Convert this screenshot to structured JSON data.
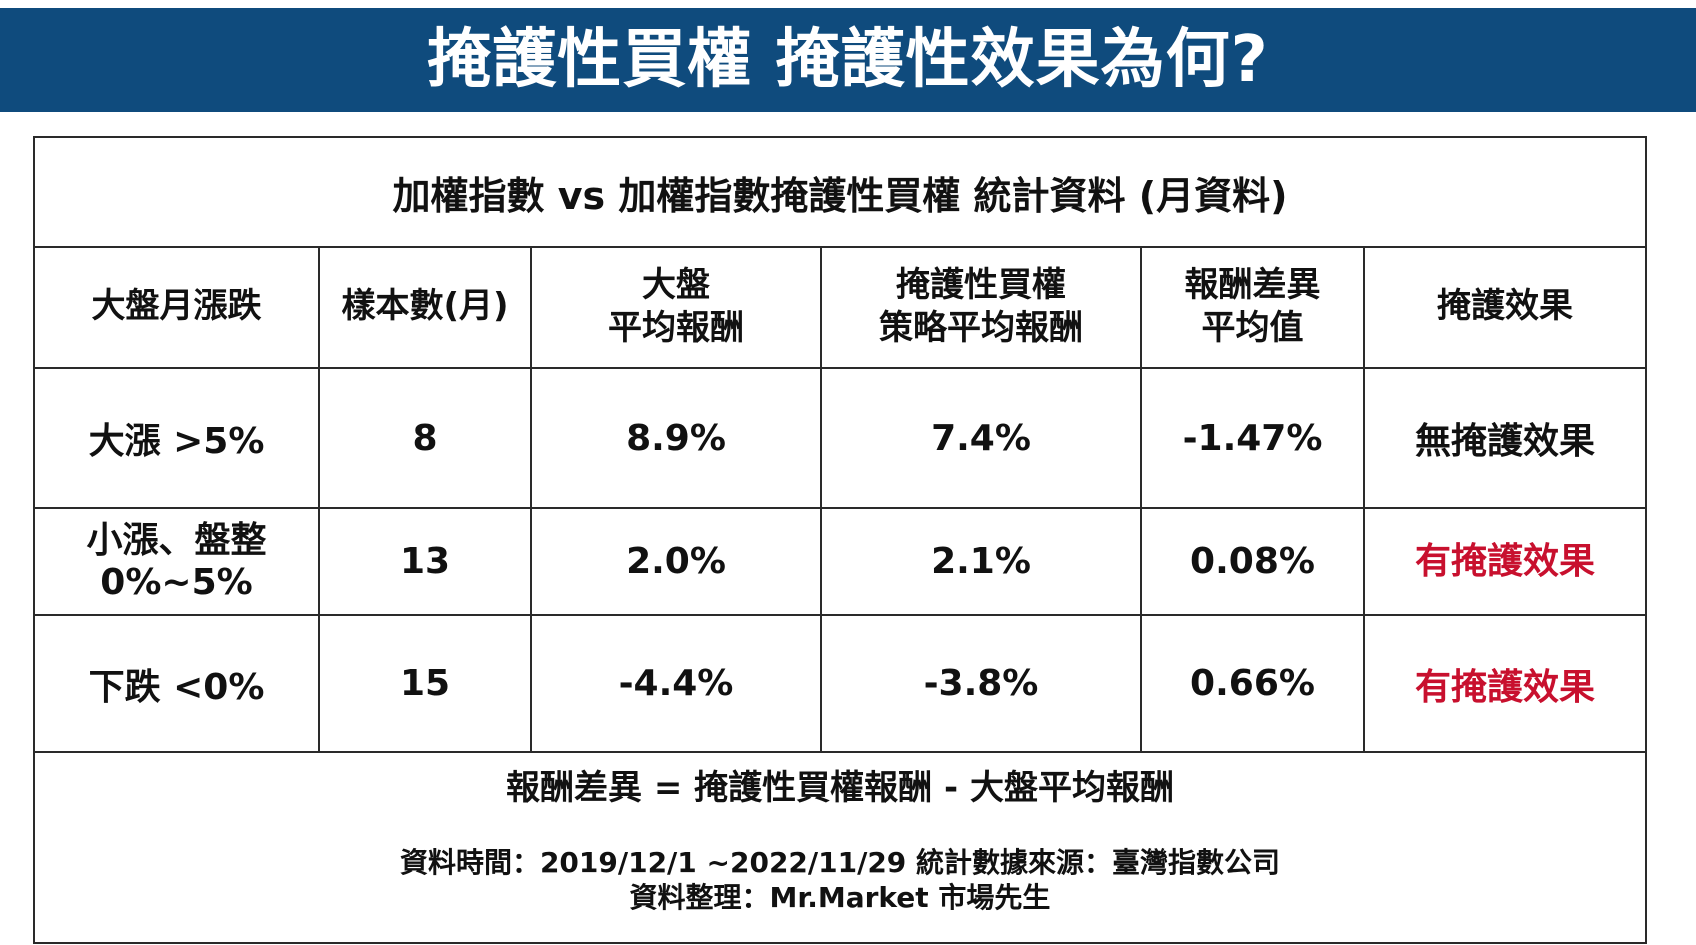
{
  "banner": {
    "title": "掩護性買權 掩護性效果為何?",
    "background_color": "#0f4b7d"
  },
  "table": {
    "title": "加權指數 vs 加權指數掩護性買權 統計資料 (月資料)",
    "headers": [
      {
        "lines": [
          "大盤月漲跌"
        ]
      },
      {
        "lines": [
          "樣本數(月)"
        ]
      },
      {
        "lines": [
          "大盤",
          "平均報酬"
        ]
      },
      {
        "lines": [
          "掩護性買權",
          "策略平均報酬"
        ]
      },
      {
        "lines": [
          "報酬差異",
          "平均值"
        ]
      },
      {
        "lines": [
          "掩護效果"
        ]
      }
    ],
    "rows": [
      {
        "range": [
          "大漲 >5%"
        ],
        "samples": "8",
        "market_return": "8.9%",
        "covered_call_return": "7.4%",
        "difference": "-1.47%",
        "effect": "無掩護效果"
      },
      {
        "range": [
          "小漲、盤整",
          "0%~5%"
        ],
        "samples": "13",
        "market_return": "2.0%",
        "covered_call_return": "2.1%",
        "difference": "0.08%",
        "effect": "有掩護效果"
      },
      {
        "range": [
          "下跌 <0%"
        ],
        "samples": "15",
        "market_return": "-4.4%",
        "covered_call_return": "-3.8%",
        "difference": "0.66%",
        "effect": "有掩護效果"
      }
    ],
    "effect_highlight_color": "#c8102e"
  },
  "footer": {
    "formula": "報酬差異 = 掩護性買權報酬 - 大盤平均報酬",
    "source_line": "資料時間：2019/12/1 ~2022/11/29 統計數據來源：臺灣指數公司",
    "author_line": "資料整理：Mr.Market 市場先生"
  }
}
